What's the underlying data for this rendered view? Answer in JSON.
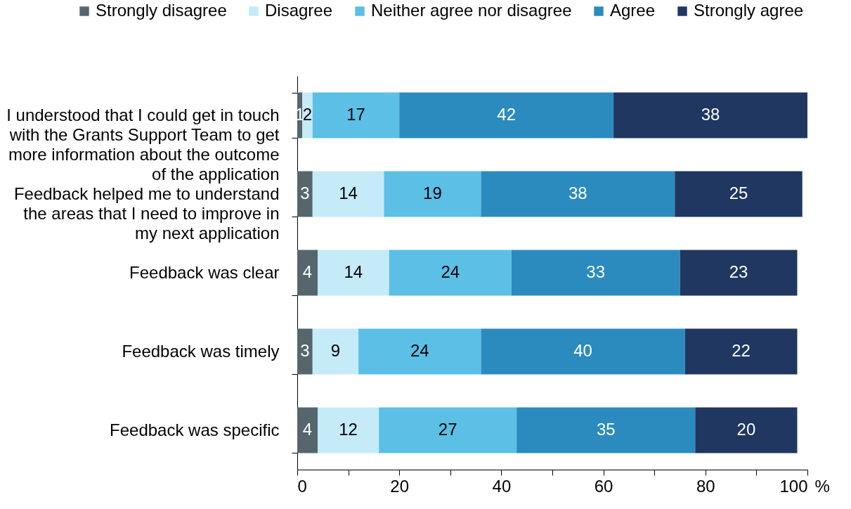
{
  "chart_data": {
    "type": "bar",
    "orientation": "horizontal",
    "stacked": true,
    "data_labels": true,
    "legend": "top",
    "grid": false,
    "xlabel": "%",
    "categories": [
      "I understood that I could get in touch with the Grants Support Team to get more information about the outcome of the application",
      "Feedback helped me to understand the areas that I need to improve in my next application",
      "Feedback was clear",
      "Feedback was timely",
      "Feedback was specific"
    ],
    "series": [
      {
        "name": "Strongly disagree",
        "color": "#55666d",
        "values": [
          1,
          3,
          4,
          3,
          4
        ]
      },
      {
        "name": "Disagree",
        "color": "#c4ebf7",
        "values": [
          2,
          14,
          14,
          9,
          12
        ]
      },
      {
        "name": "Neither agree nor disagree",
        "color": "#5bbfe6",
        "values": [
          17,
          19,
          24,
          24,
          27
        ]
      },
      {
        "name": "Agree",
        "color": "#2b8bbf",
        "values": [
          42,
          38,
          33,
          40,
          35
        ]
      },
      {
        "name": "Strongly agree",
        "color": "#1f3761",
        "values": [
          38,
          25,
          23,
          22,
          20
        ]
      }
    ],
    "xlim": [
      0,
      100
    ],
    "xticks": [
      0,
      {
        "value": 10,
        "label": null
      },
      20,
      {
        "value": 30,
        "label": null
      },
      40,
      {
        "value": 50,
        "label": null
      },
      60,
      {
        "value": 70,
        "label": null
      },
      80,
      {
        "value": 90,
        "label": null
      },
      100
    ]
  }
}
